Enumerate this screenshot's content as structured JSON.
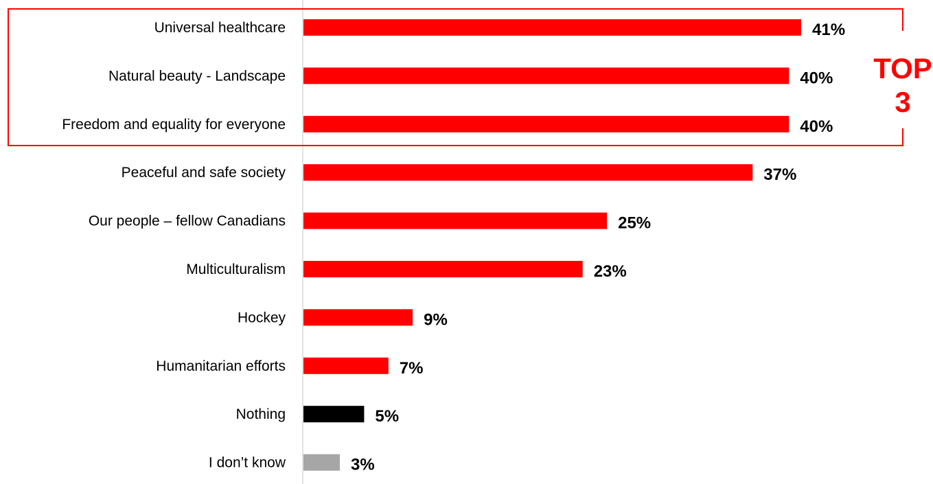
{
  "colors": {
    "accent": "#ff0000",
    "nothing": "#000000",
    "dont_know": "#a6a6a6",
    "axis": "#d9d9d9"
  },
  "highlight": {
    "line1": "TOP",
    "line2": "3"
  },
  "chart_data": {
    "type": "bar",
    "orientation": "horizontal",
    "categories": [
      "Universal healthcare",
      "Natural beauty - Landscape",
      "Freedom and equality for everyone",
      "Peaceful and safe society",
      "Our people – fellow Canadians",
      "Multiculturalism",
      "Hockey",
      "Humanitarian efforts",
      "Nothing",
      "I don’t know"
    ],
    "values": [
      41,
      40,
      40,
      37,
      25,
      23,
      9,
      7,
      5,
      3
    ],
    "value_labels": [
      "41%",
      "40%",
      "40%",
      "37%",
      "25%",
      "23%",
      "9%",
      "7%",
      "5%",
      "3%"
    ],
    "bar_colors": [
      "#ff0000",
      "#ff0000",
      "#ff0000",
      "#ff0000",
      "#ff0000",
      "#ff0000",
      "#ff0000",
      "#ff0000",
      "#000000",
      "#a6a6a6"
    ],
    "unit": "%",
    "xlim": [
      0,
      41
    ],
    "grid": false,
    "highlighted_categories": [
      0,
      1,
      2
    ]
  }
}
